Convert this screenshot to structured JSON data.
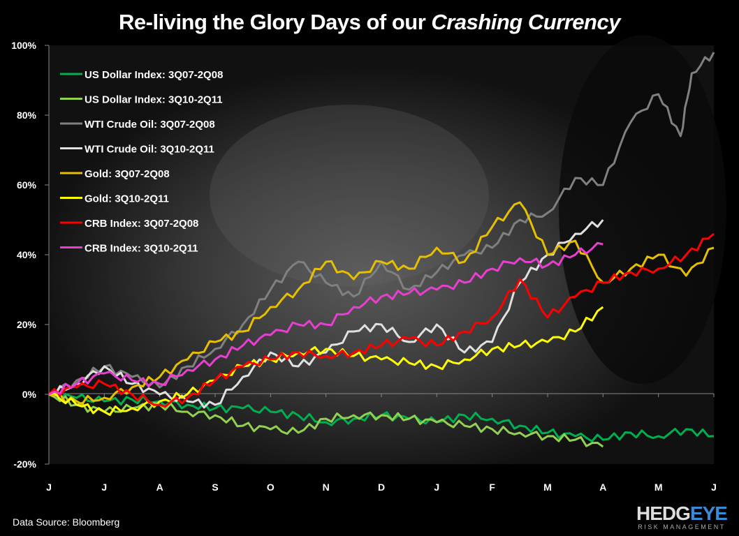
{
  "title": {
    "main": "Re-living the Glory Days of our ",
    "italic": "Crashing Currency"
  },
  "source": "Data Source: Bloomberg",
  "logo": {
    "part1": "HEDG",
    "part2": "EYE",
    "sub": "RISK MANAGEMENT"
  },
  "chart_data": {
    "type": "line",
    "title": "Re-living the Glory Days of our Crashing Currency",
    "x_ticks": [
      "J",
      "J",
      "A",
      "S",
      "O",
      "N",
      "D",
      "J",
      "F",
      "M",
      "A",
      "M",
      "J"
    ],
    "y_ticks": [
      "-20%",
      "0%",
      "20%",
      "40%",
      "60%",
      "80%",
      "100%"
    ],
    "ylim": [
      -20,
      100
    ],
    "xlim": [
      0,
      12
    ],
    "legend_position": "top-left",
    "grid": false,
    "series": [
      {
        "name": "US Dollar Index: 3Q07-2Q08",
        "color": "#00b050",
        "points": [
          [
            0,
            0
          ],
          [
            0.5,
            -1
          ],
          [
            1,
            -2
          ],
          [
            1.5,
            -1.5
          ],
          [
            2,
            -2
          ],
          [
            2.5,
            -3
          ],
          [
            3,
            -4
          ],
          [
            3.5,
            -4
          ],
          [
            4,
            -5
          ],
          [
            4.5,
            -6
          ],
          [
            5,
            -8
          ],
          [
            5.5,
            -7
          ],
          [
            6,
            -6
          ],
          [
            6.5,
            -7
          ],
          [
            7,
            -8
          ],
          [
            7.5,
            -6
          ],
          [
            8,
            -7
          ],
          [
            8.5,
            -9
          ],
          [
            9,
            -11
          ],
          [
            9.5,
            -12
          ],
          [
            10,
            -13
          ],
          [
            10.5,
            -11
          ],
          [
            11,
            -12
          ],
          [
            11.5,
            -10
          ],
          [
            12,
            -12
          ]
        ]
      },
      {
        "name": "US Dollar Index: 3Q10-2Q11",
        "color": "#92d050",
        "points": [
          [
            0,
            0
          ],
          [
            0.5,
            -3
          ],
          [
            1,
            -5
          ],
          [
            1.5,
            -4
          ],
          [
            2,
            -3
          ],
          [
            2.5,
            -5
          ],
          [
            3,
            -6
          ],
          [
            3.5,
            -9
          ],
          [
            4,
            -10
          ],
          [
            4.5,
            -11
          ],
          [
            5,
            -7
          ],
          [
            5.5,
            -6
          ],
          [
            6,
            -6
          ],
          [
            6.5,
            -7
          ],
          [
            7,
            -8
          ],
          [
            7.5,
            -9
          ],
          [
            8,
            -10
          ],
          [
            8.5,
            -11
          ],
          [
            9,
            -12
          ],
          [
            9.5,
            -13
          ],
          [
            10,
            -15
          ]
        ]
      },
      {
        "name": "WTI Crude Oil: 3Q07-2Q08",
        "color": "#808080",
        "points": [
          [
            0,
            0
          ],
          [
            0.5,
            4
          ],
          [
            1,
            8
          ],
          [
            1.5,
            5
          ],
          [
            2,
            2
          ],
          [
            2.5,
            8
          ],
          [
            3,
            13
          ],
          [
            3.5,
            20
          ],
          [
            4,
            30
          ],
          [
            4.5,
            38
          ],
          [
            5,
            32
          ],
          [
            5.5,
            28
          ],
          [
            6,
            38
          ],
          [
            6.5,
            30
          ],
          [
            7,
            35
          ],
          [
            7.5,
            40
          ],
          [
            8,
            42
          ],
          [
            8.5,
            50
          ],
          [
            9,
            52
          ],
          [
            9.5,
            62
          ],
          [
            10,
            60
          ],
          [
            10.5,
            78
          ],
          [
            11,
            86
          ],
          [
            11.4,
            74
          ],
          [
            11.6,
            92
          ],
          [
            12,
            98
          ]
        ]
      },
      {
        "name": "WTI Crude Oil: 3Q10-2Q11",
        "color": "#e0e0e0",
        "points": [
          [
            0,
            0
          ],
          [
            0.5,
            3
          ],
          [
            1,
            8
          ],
          [
            1.5,
            3
          ],
          [
            2,
            0
          ],
          [
            2.5,
            -2
          ],
          [
            3,
            -3
          ],
          [
            3.5,
            5
          ],
          [
            4,
            12
          ],
          [
            4.5,
            8
          ],
          [
            5,
            12
          ],
          [
            5.5,
            18
          ],
          [
            6,
            20
          ],
          [
            6.5,
            15
          ],
          [
            7,
            20
          ],
          [
            7.5,
            12
          ],
          [
            8,
            15
          ],
          [
            8.5,
            32
          ],
          [
            9,
            40
          ],
          [
            9.5,
            46
          ],
          [
            10,
            50
          ]
        ]
      },
      {
        "name": "Gold: 3Q07-2Q08",
        "color": "#e6c000",
        "points": [
          [
            0,
            0
          ],
          [
            0.5,
            -2
          ],
          [
            1,
            -1
          ],
          [
            1.5,
            2
          ],
          [
            2,
            5
          ],
          [
            2.5,
            10
          ],
          [
            3,
            15
          ],
          [
            3.5,
            18
          ],
          [
            4,
            25
          ],
          [
            4.5,
            30
          ],
          [
            5,
            38
          ],
          [
            5.5,
            33
          ],
          [
            6,
            38
          ],
          [
            6.5,
            36
          ],
          [
            7,
            42
          ],
          [
            7.5,
            38
          ],
          [
            8,
            48
          ],
          [
            8.5,
            55
          ],
          [
            9,
            40
          ],
          [
            9.5,
            44
          ],
          [
            10,
            32
          ],
          [
            10.5,
            36
          ],
          [
            11,
            40
          ],
          [
            11.5,
            34
          ],
          [
            12,
            42
          ]
        ]
      },
      {
        "name": "Gold: 3Q10-2Q11",
        "color": "#ffff00",
        "points": [
          [
            0,
            0
          ],
          [
            0.5,
            -3
          ],
          [
            1,
            -5
          ],
          [
            1.5,
            -4
          ],
          [
            2,
            -2
          ],
          [
            2.5,
            0
          ],
          [
            3,
            4
          ],
          [
            3.5,
            8
          ],
          [
            4,
            10
          ],
          [
            4.5,
            12
          ],
          [
            5,
            13
          ],
          [
            5.5,
            11
          ],
          [
            6,
            10
          ],
          [
            6.5,
            9
          ],
          [
            7,
            8
          ],
          [
            7.5,
            10
          ],
          [
            8,
            13
          ],
          [
            8.5,
            14
          ],
          [
            9,
            15
          ],
          [
            9.5,
            18
          ],
          [
            10,
            25
          ]
        ]
      },
      {
        "name": "CRB Index: 3Q07-2Q08",
        "color": "#ff0000",
        "points": [
          [
            0,
            0
          ],
          [
            0.5,
            2
          ],
          [
            1,
            3
          ],
          [
            1.5,
            0
          ],
          [
            2,
            -3
          ],
          [
            2.5,
            -1
          ],
          [
            3,
            4
          ],
          [
            3.5,
            8
          ],
          [
            4,
            10
          ],
          [
            4.5,
            12
          ],
          [
            5,
            11
          ],
          [
            5.5,
            12
          ],
          [
            6,
            14
          ],
          [
            6.5,
            16
          ],
          [
            7,
            14
          ],
          [
            7.5,
            18
          ],
          [
            8,
            22
          ],
          [
            8.5,
            33
          ],
          [
            9,
            22
          ],
          [
            9.5,
            28
          ],
          [
            10,
            32
          ],
          [
            10.5,
            35
          ],
          [
            11,
            36
          ],
          [
            11.5,
            40
          ],
          [
            12,
            46
          ]
        ]
      },
      {
        "name": "CRB Index: 3Q10-2Q11",
        "color": "#e83fd0",
        "points": [
          [
            0,
            0
          ],
          [
            0.5,
            3
          ],
          [
            1,
            6
          ],
          [
            1.5,
            4
          ],
          [
            2,
            3
          ],
          [
            2.5,
            7
          ],
          [
            3,
            10
          ],
          [
            3.5,
            14
          ],
          [
            4,
            17
          ],
          [
            4.5,
            20
          ],
          [
            5,
            20
          ],
          [
            5.5,
            25
          ],
          [
            6,
            28
          ],
          [
            6.5,
            29
          ],
          [
            7,
            30
          ],
          [
            7.5,
            32
          ],
          [
            8,
            36
          ],
          [
            8.5,
            39
          ],
          [
            9,
            37
          ],
          [
            9.5,
            40
          ],
          [
            10,
            43
          ]
        ]
      }
    ]
  }
}
